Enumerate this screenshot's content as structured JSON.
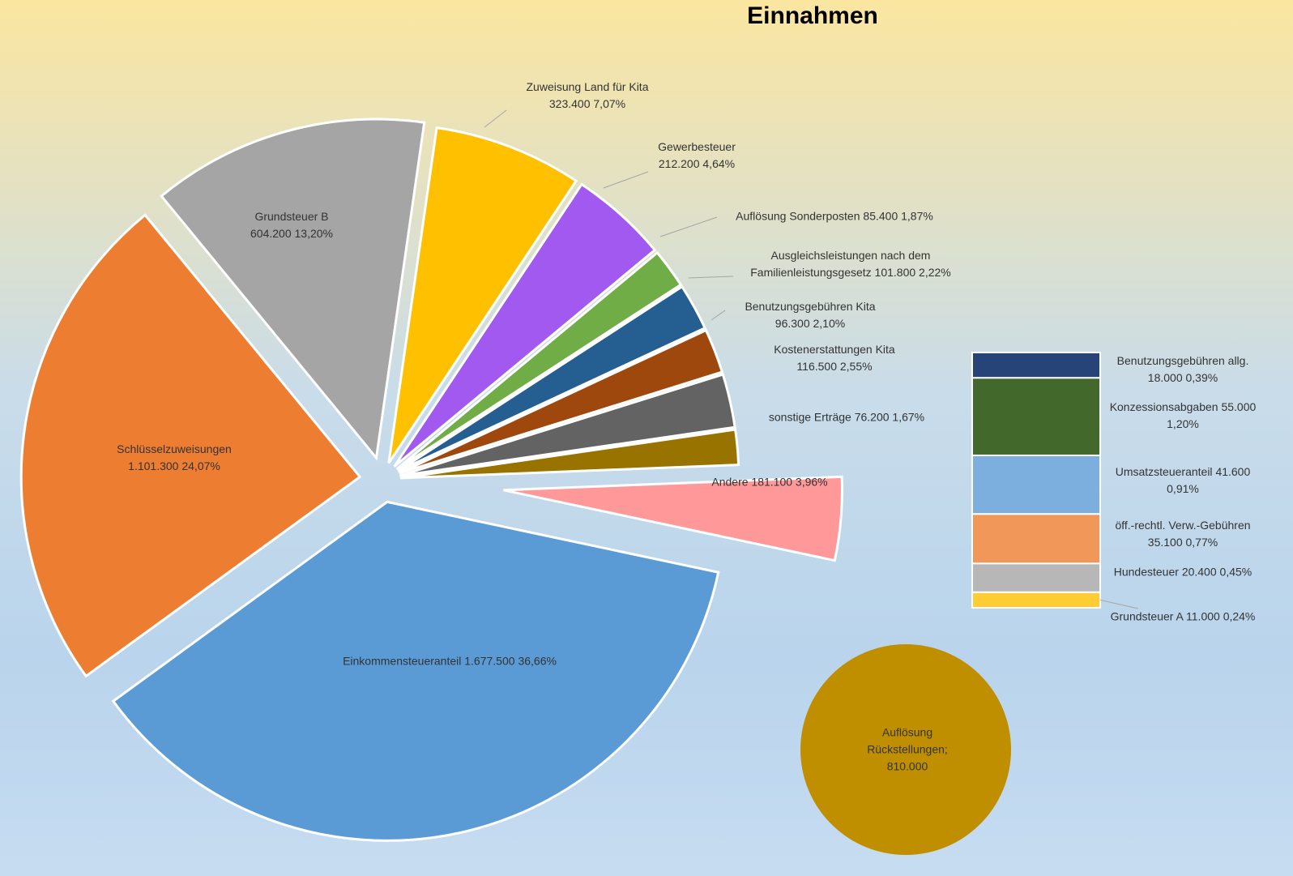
{
  "chart_data": {
    "type": "bar_of_pie",
    "title": "Einnahmen",
    "categories": [
      "Einkommensteueranteil",
      "Schlüsselzuweisungen",
      "Grundsteuer B",
      "Zuweisung Land für Kita",
      "Gewerbesteuer",
      "Auflösung Sonderposten",
      "Ausgleichsleistungen nach dem Familienleistungsgesetz",
      "Benutzungsgebühren Kita",
      "Kostenerstattungen Kita",
      "sonstige Erträge",
      "Andere"
    ],
    "values": [
      1677500,
      1101300,
      604200,
      323400,
      212200,
      85400,
      101800,
      96300,
      116500,
      76200,
      181100
    ],
    "value_labels": [
      "1.677.500",
      "1.101.300",
      "604.200",
      "323.400",
      "212.200",
      "85.400",
      "101.800",
      "96.300",
      "116.500",
      "76.200",
      "181.100"
    ],
    "percents": [
      36.66,
      24.07,
      13.2,
      7.07,
      4.64,
      1.87,
      2.22,
      2.1,
      2.55,
      1.67,
      3.96
    ],
    "percent_labels": [
      "36,66%",
      "24,07%",
      "13,20%",
      "7,07%",
      "4,64%",
      "1,87%",
      "2,22%",
      "2,10%",
      "2,55%",
      "1,67%",
      "3,96%"
    ],
    "colors": [
      "#5b9bd5",
      "#ed7d31",
      "#a5a5a5",
      "#ffc000",
      "#a259f0",
      "#70ad47",
      "#255e91",
      "#9e480e",
      "#636363",
      "#997300",
      "#ff9999"
    ],
    "bar": {
      "categories": [
        "Benutzungsgebühren allg.",
        "Konzessionsabgaben",
        "Umsatzsteueranteil",
        "öff.-rechtl. Verw.-Gebühren",
        "Hundesteuer",
        "Grundsteuer A"
      ],
      "values": [
        18000,
        55000,
        41600,
        35100,
        20400,
        11000
      ],
      "value_labels": [
        "18.000",
        "55.000",
        "41.600",
        "35.100",
        "20.400",
        "11.000"
      ],
      "percents": [
        0.39,
        1.2,
        0.91,
        0.77,
        0.45,
        0.24
      ],
      "percent_labels": [
        "0,39%",
        "1,20%",
        "0,91%",
        "0,77%",
        "0,45%",
        "0,24%"
      ],
      "colors": [
        "#264478",
        "#43682b",
        "#7cafdd",
        "#f1975a",
        "#b7b7b7",
        "#ffcd33"
      ]
    },
    "extra": {
      "name": "Auflösung Rückstellungen;",
      "value": 810000,
      "value_label": "810.000",
      "color": "#bf8f00"
    }
  }
}
